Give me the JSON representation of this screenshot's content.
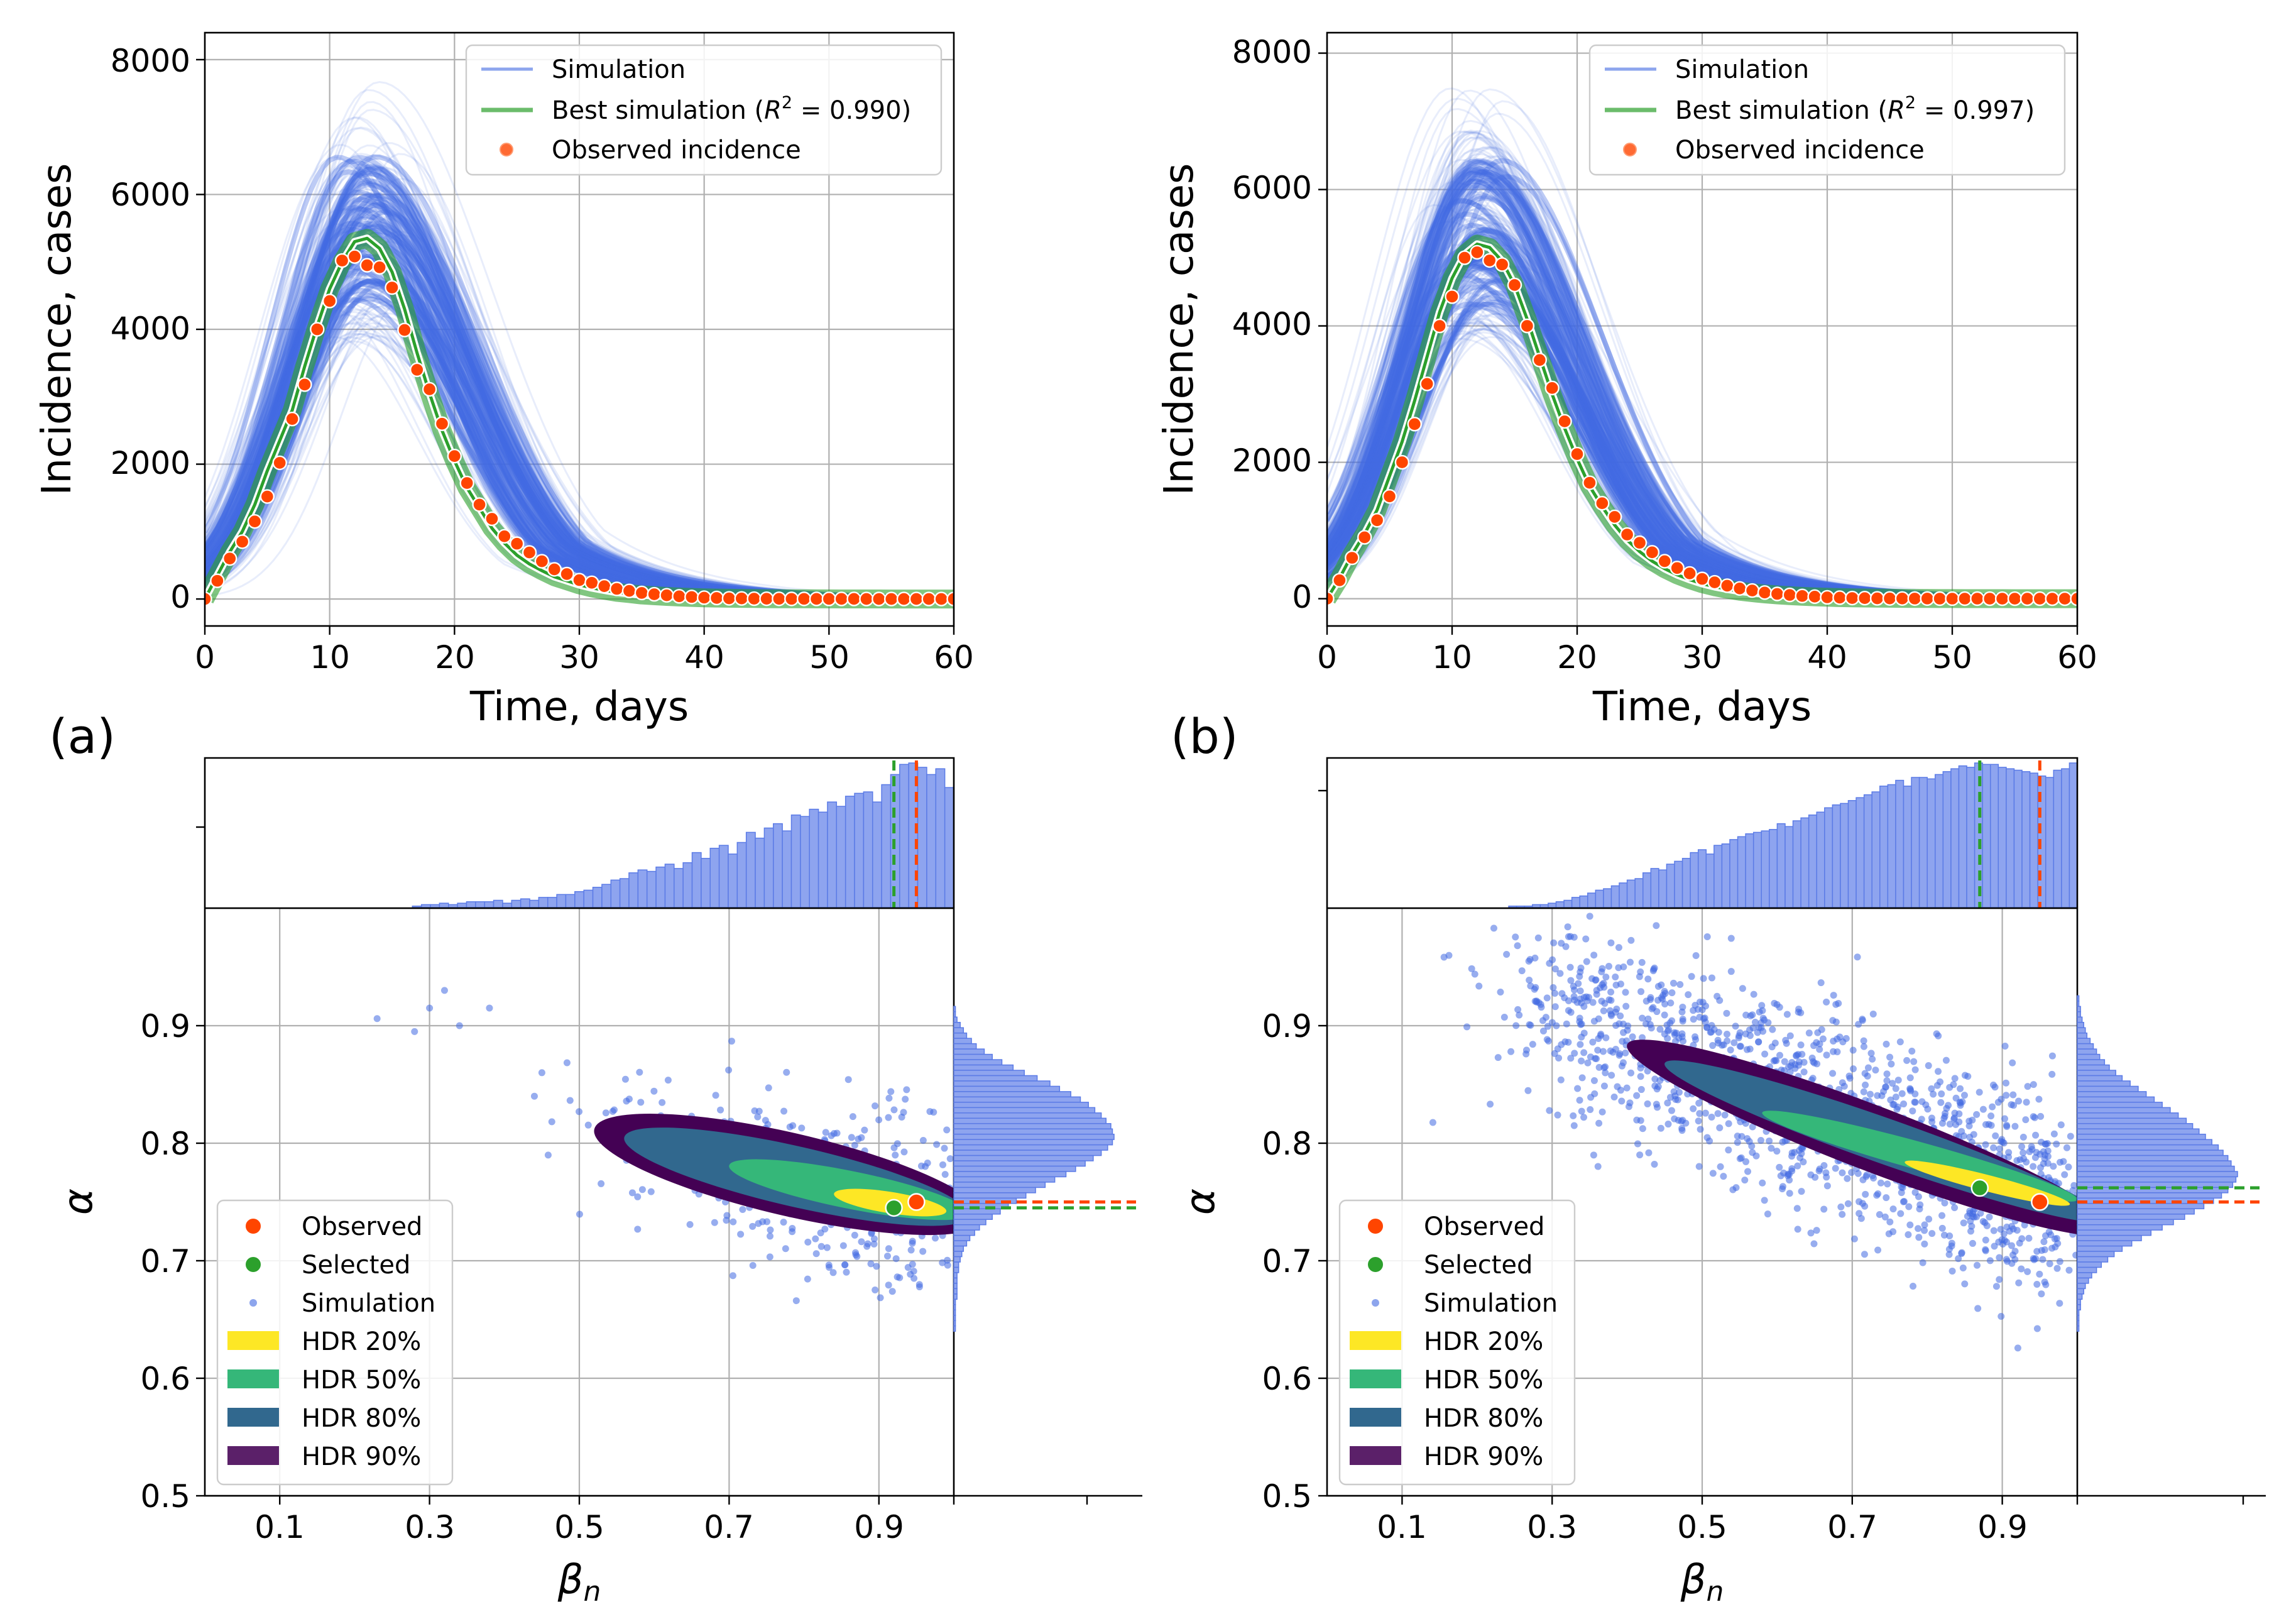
{
  "chart_data": [
    {
      "id": "a_top",
      "type": "line",
      "panel": "(a)",
      "xlabel": "Time, days",
      "ylabel": "Incidence, cases",
      "xlim": [
        0,
        60
      ],
      "ylim": [
        -400,
        8400
      ],
      "xticks": [
        "0",
        "10",
        "20",
        "30",
        "40",
        "50",
        "60"
      ],
      "yticks": [
        "0",
        "2000",
        "4000",
        "6000",
        "8000"
      ],
      "legend": {
        "position": "top-right",
        "entries": [
          "Simulation",
          "Best simulation (",
          "R",
          "2",
          " = 0.990)",
          "Observed incidence"
        ]
      },
      "peak_day": 12.8,
      "r2": 0.99,
      "envelope_low_peak": 3800,
      "envelope_high_peak": 7900,
      "observed": {
        "x": [
          0,
          1,
          2,
          3,
          4,
          5,
          6,
          7,
          8,
          9,
          10,
          11,
          12,
          13,
          14,
          15,
          16,
          17,
          18,
          19,
          20,
          21,
          22,
          23,
          24,
          25,
          26,
          27,
          28,
          29,
          30,
          31,
          32,
          33,
          34,
          35,
          36,
          37,
          38,
          39,
          40,
          41,
          42,
          43,
          44,
          45,
          46,
          47,
          48,
          49,
          50,
          51,
          52,
          53,
          54,
          55,
          56,
          57,
          58,
          59,
          60
        ],
        "y": [
          0,
          270,
          600,
          850,
          1150,
          1520,
          2020,
          2670,
          3180,
          4000,
          4420,
          5020,
          5080,
          4950,
          4920,
          4620,
          3990,
          3400,
          3110,
          2600,
          2120,
          1720,
          1400,
          1190,
          930,
          820,
          690,
          560,
          440,
          370,
          280,
          240,
          190,
          150,
          120,
          90,
          70,
          55,
          40,
          30,
          20,
          15,
          10,
          8,
          5,
          4,
          3,
          2,
          2,
          1,
          1,
          1,
          1,
          0,
          0,
          0,
          0,
          0,
          0,
          0,
          0
        ]
      },
      "best_simulation": {
        "x": [
          0,
          1,
          2,
          3,
          4,
          5,
          6,
          7,
          8,
          9,
          10,
          11,
          12,
          13,
          14,
          15,
          16,
          17,
          18,
          19,
          20,
          21,
          22,
          23,
          24,
          25,
          26,
          27,
          28,
          29,
          30,
          31,
          32,
          33,
          34,
          35,
          36,
          37,
          38,
          39,
          40,
          41,
          42,
          43,
          44,
          45,
          46,
          47,
          48,
          49,
          50,
          51,
          52,
          53,
          54,
          55,
          56,
          57,
          58,
          59,
          60
        ],
        "y": [
          0,
          350,
          700,
          1000,
          1400,
          1900,
          2350,
          2800,
          3450,
          4050,
          4600,
          5000,
          5300,
          5350,
          5200,
          4850,
          4300,
          3650,
          3050,
          2500,
          2050,
          1650,
          1350,
          1050,
          830,
          650,
          520,
          420,
          330,
          270,
          210,
          165,
          130,
          100,
          80,
          60,
          48,
          38,
          30,
          23,
          18,
          14,
          11,
          9,
          7,
          5,
          4,
          3,
          3,
          2,
          2,
          1,
          1,
          1,
          1,
          0,
          0,
          0,
          0,
          0,
          0
        ]
      }
    },
    {
      "id": "b_top",
      "type": "line",
      "panel": "(b)",
      "xlabel": "Time, days",
      "ylabel": "Incidence, cases",
      "xlim": [
        0,
        60
      ],
      "ylim": [
        -400,
        8300
      ],
      "xticks": [
        "0",
        "10",
        "20",
        "30",
        "40",
        "50",
        "60"
      ],
      "yticks": [
        "0",
        "2000",
        "4000",
        "6000",
        "8000"
      ],
      "legend": {
        "position": "top-right",
        "entries": [
          "Simulation",
          "Best simulation (",
          "R",
          "2",
          " = 0.997)",
          "Observed incidence"
        ]
      },
      "peak_day": 12,
      "r2": 0.997,
      "envelope_low_peak": 3800,
      "envelope_high_peak": 7700,
      "observed": {
        "x": [
          0,
          1,
          2,
          3,
          4,
          5,
          6,
          7,
          8,
          9,
          10,
          11,
          12,
          13,
          14,
          15,
          16,
          17,
          18,
          19,
          20,
          21,
          22,
          23,
          24,
          25,
          26,
          27,
          28,
          29,
          30,
          31,
          32,
          33,
          34,
          35,
          36,
          37,
          38,
          39,
          40,
          41,
          42,
          43,
          44,
          45,
          46,
          47,
          48,
          49,
          50,
          51,
          52,
          53,
          54,
          55,
          56,
          57,
          58,
          59,
          60
        ],
        "y": [
          0,
          270,
          600,
          900,
          1150,
          1500,
          2000,
          2560,
          3150,
          4000,
          4430,
          5000,
          5080,
          4960,
          4900,
          4600,
          4000,
          3500,
          3090,
          2600,
          2120,
          1700,
          1400,
          1200,
          940,
          820,
          680,
          550,
          450,
          370,
          290,
          240,
          190,
          150,
          120,
          90,
          70,
          55,
          40,
          30,
          20,
          15,
          10,
          8,
          5,
          4,
          3,
          2,
          2,
          1,
          1,
          1,
          1,
          0,
          0,
          0,
          0,
          0,
          0,
          0,
          0
        ]
      },
      "best_simulation": {
        "x": [
          0,
          1,
          2,
          3,
          4,
          5,
          6,
          7,
          8,
          9,
          10,
          11,
          12,
          13,
          14,
          15,
          16,
          17,
          18,
          19,
          20,
          21,
          22,
          23,
          24,
          25,
          26,
          27,
          28,
          29,
          30,
          31,
          32,
          33,
          34,
          35,
          36,
          37,
          38,
          39,
          40,
          41,
          42,
          43,
          44,
          45,
          46,
          47,
          48,
          49,
          50,
          51,
          52,
          53,
          54,
          55,
          56,
          57,
          58,
          59,
          60
        ],
        "y": [
          0,
          300,
          650,
          950,
          1300,
          1800,
          2300,
          2900,
          3550,
          4200,
          4700,
          5050,
          5200,
          5150,
          4950,
          4600,
          4100,
          3550,
          3000,
          2500,
          2050,
          1650,
          1350,
          1080,
          860,
          690,
          550,
          440,
          350,
          280,
          220,
          175,
          140,
          110,
          88,
          70,
          55,
          44,
          35,
          27,
          21,
          16,
          13,
          10,
          8,
          6,
          5,
          4,
          3,
          2,
          2,
          1,
          1,
          1,
          1,
          0,
          0,
          0,
          0,
          0,
          0
        ]
      }
    },
    {
      "id": "a_bottom",
      "type": "scatter",
      "xlabel": "β",
      "xlabel_sub": "n",
      "ylabel": "α",
      "xlim": [
        0,
        1
      ],
      "ylim": [
        0.5,
        1.0
      ],
      "xticks": [
        "0.1",
        "0.3",
        "0.5",
        "0.7",
        "0.9"
      ],
      "yticks": [
        "0.5",
        "0.6",
        "0.7",
        "0.8",
        "0.9"
      ],
      "legend": [
        "Observed",
        "Selected",
        "Simulation",
        "HDR 20%",
        "HDR 50%",
        "HDR 80%",
        "HDR 90%"
      ],
      "observed_point": {
        "beta": 0.95,
        "alpha": 0.75
      },
      "selected_point": {
        "beta": 0.92,
        "alpha": 0.745
      },
      "hdr_levels": [
        "20%",
        "50%",
        "80%",
        "90%"
      ],
      "cloud": {
        "beta_start": 0.52,
        "alpha_start": 0.812,
        "beta_end": 1.0,
        "alpha_end": 0.735,
        "beta_spread": 0.05,
        "alpha_spread": 0.035
      },
      "beta_histogram": [
        0,
        0,
        0,
        0,
        0,
        0,
        0,
        0,
        0,
        0,
        0,
        0,
        0,
        0,
        0,
        0,
        0,
        0,
        0,
        0,
        0,
        0,
        0,
        1,
        2,
        2,
        3,
        2,
        3,
        4,
        4,
        4,
        5,
        3,
        5,
        6,
        5,
        7,
        7,
        9,
        9,
        11,
        12,
        14,
        16,
        19,
        20,
        24,
        26,
        25,
        28,
        30,
        27,
        31,
        38,
        34,
        41,
        43,
        37,
        45,
        52,
        48,
        55,
        58,
        53,
        64,
        63,
        68,
        66,
        73,
        70,
        77,
        79,
        80,
        73,
        85,
        92,
        99,
        100,
        97,
        92,
        96,
        83
      ],
      "alpha_histogram": [
        0,
        0,
        0,
        1,
        1,
        2,
        4,
        6,
        8,
        11,
        14,
        19,
        24,
        30,
        37,
        44,
        52,
        60,
        66,
        73,
        79,
        84,
        88,
        92,
        95,
        98,
        99,
        100,
        99,
        96,
        92,
        87,
        82,
        76,
        70,
        63,
        57,
        51,
        45,
        39,
        34,
        29,
        24,
        20,
        16,
        13,
        10,
        8,
        6,
        5,
        4,
        3,
        3,
        2,
        2,
        2,
        2,
        2,
        1,
        1,
        1,
        1,
        1,
        1
      ],
      "observed_marginal_line": {
        "beta": 0.95,
        "alpha": 0.75
      },
      "selected_marginal_line": {
        "beta": 0.92,
        "alpha": 0.745
      }
    },
    {
      "id": "b_bottom",
      "type": "scatter",
      "xlabel": "β",
      "xlabel_sub": "n",
      "ylabel": "α",
      "xlim": [
        0,
        1
      ],
      "ylim": [
        0.5,
        1.0
      ],
      "xticks": [
        "0.1",
        "0.3",
        "0.5",
        "0.7",
        "0.9"
      ],
      "yticks": [
        "0.5",
        "0.6",
        "0.7",
        "0.8",
        "0.9"
      ],
      "legend": [
        "Observed",
        "Selected",
        "Simulation",
        "HDR 20%",
        "HDR 50%",
        "HDR 80%",
        "HDR 90%"
      ],
      "observed_point": {
        "beta": 0.95,
        "alpha": 0.75
      },
      "selected_point": {
        "beta": 0.87,
        "alpha": 0.762
      },
      "hdr_levels": [
        "20%",
        "50%",
        "80%",
        "90%"
      ],
      "cloud": {
        "beta_start": 0.25,
        "alpha_start": 0.93,
        "beta_end": 1.0,
        "alpha_end": 0.74,
        "beta_spread": 0.05,
        "alpha_spread": 0.04
      },
      "beta_histogram": [
        0,
        0,
        0,
        0,
        0,
        0,
        0,
        0,
        0,
        0,
        0,
        0,
        0,
        0,
        0,
        0,
        0,
        0,
        0,
        0,
        0,
        0,
        0,
        1,
        1,
        1,
        2,
        2,
        3,
        4,
        5,
        7,
        8,
        10,
        12,
        13,
        15,
        17,
        19,
        20,
        24,
        27,
        26,
        30,
        32,
        34,
        38,
        40,
        37,
        43,
        44,
        47,
        49,
        51,
        52,
        53,
        54,
        58,
        56,
        60,
        62,
        64,
        66,
        69,
        71,
        72,
        74,
        76,
        78,
        80,
        84,
        85,
        88,
        84,
        90,
        90,
        89,
        92,
        94,
        96,
        98,
        97,
        100,
        99,
        99,
        97,
        96,
        95,
        94,
        93,
        91,
        90,
        95,
        96,
        100
      ],
      "alpha_histogram": [
        0,
        1,
        1,
        2,
        2,
        3,
        4,
        5,
        6,
        8,
        10,
        12,
        14,
        17,
        20,
        24,
        28,
        33,
        38,
        43,
        48,
        53,
        58,
        63,
        68,
        72,
        76,
        80,
        84,
        88,
        91,
        94,
        96,
        98,
        100,
        99,
        97,
        94,
        90,
        85,
        79,
        73,
        67,
        60,
        53,
        46,
        40,
        34,
        28,
        23,
        19,
        15,
        12,
        9,
        7,
        5,
        4,
        3,
        2,
        2,
        1,
        1,
        1,
        1
      ],
      "observed_marginal_line": {
        "beta": 0.95,
        "alpha": 0.75
      },
      "selected_marginal_line": {
        "beta": 0.87,
        "alpha": 0.762
      }
    }
  ],
  "colors": {
    "simulation": "#4169e1",
    "best": "#2ca02c",
    "observed": "#ff4500",
    "hdr20": "#fde725",
    "hdr50": "#35b779",
    "hdr80": "#31688e",
    "hdr90": "#440154",
    "hist_fill": "#8ea4ef",
    "hist_edge": "#5b7be6"
  },
  "labels": {
    "a": "(a)",
    "b": "(b)"
  }
}
